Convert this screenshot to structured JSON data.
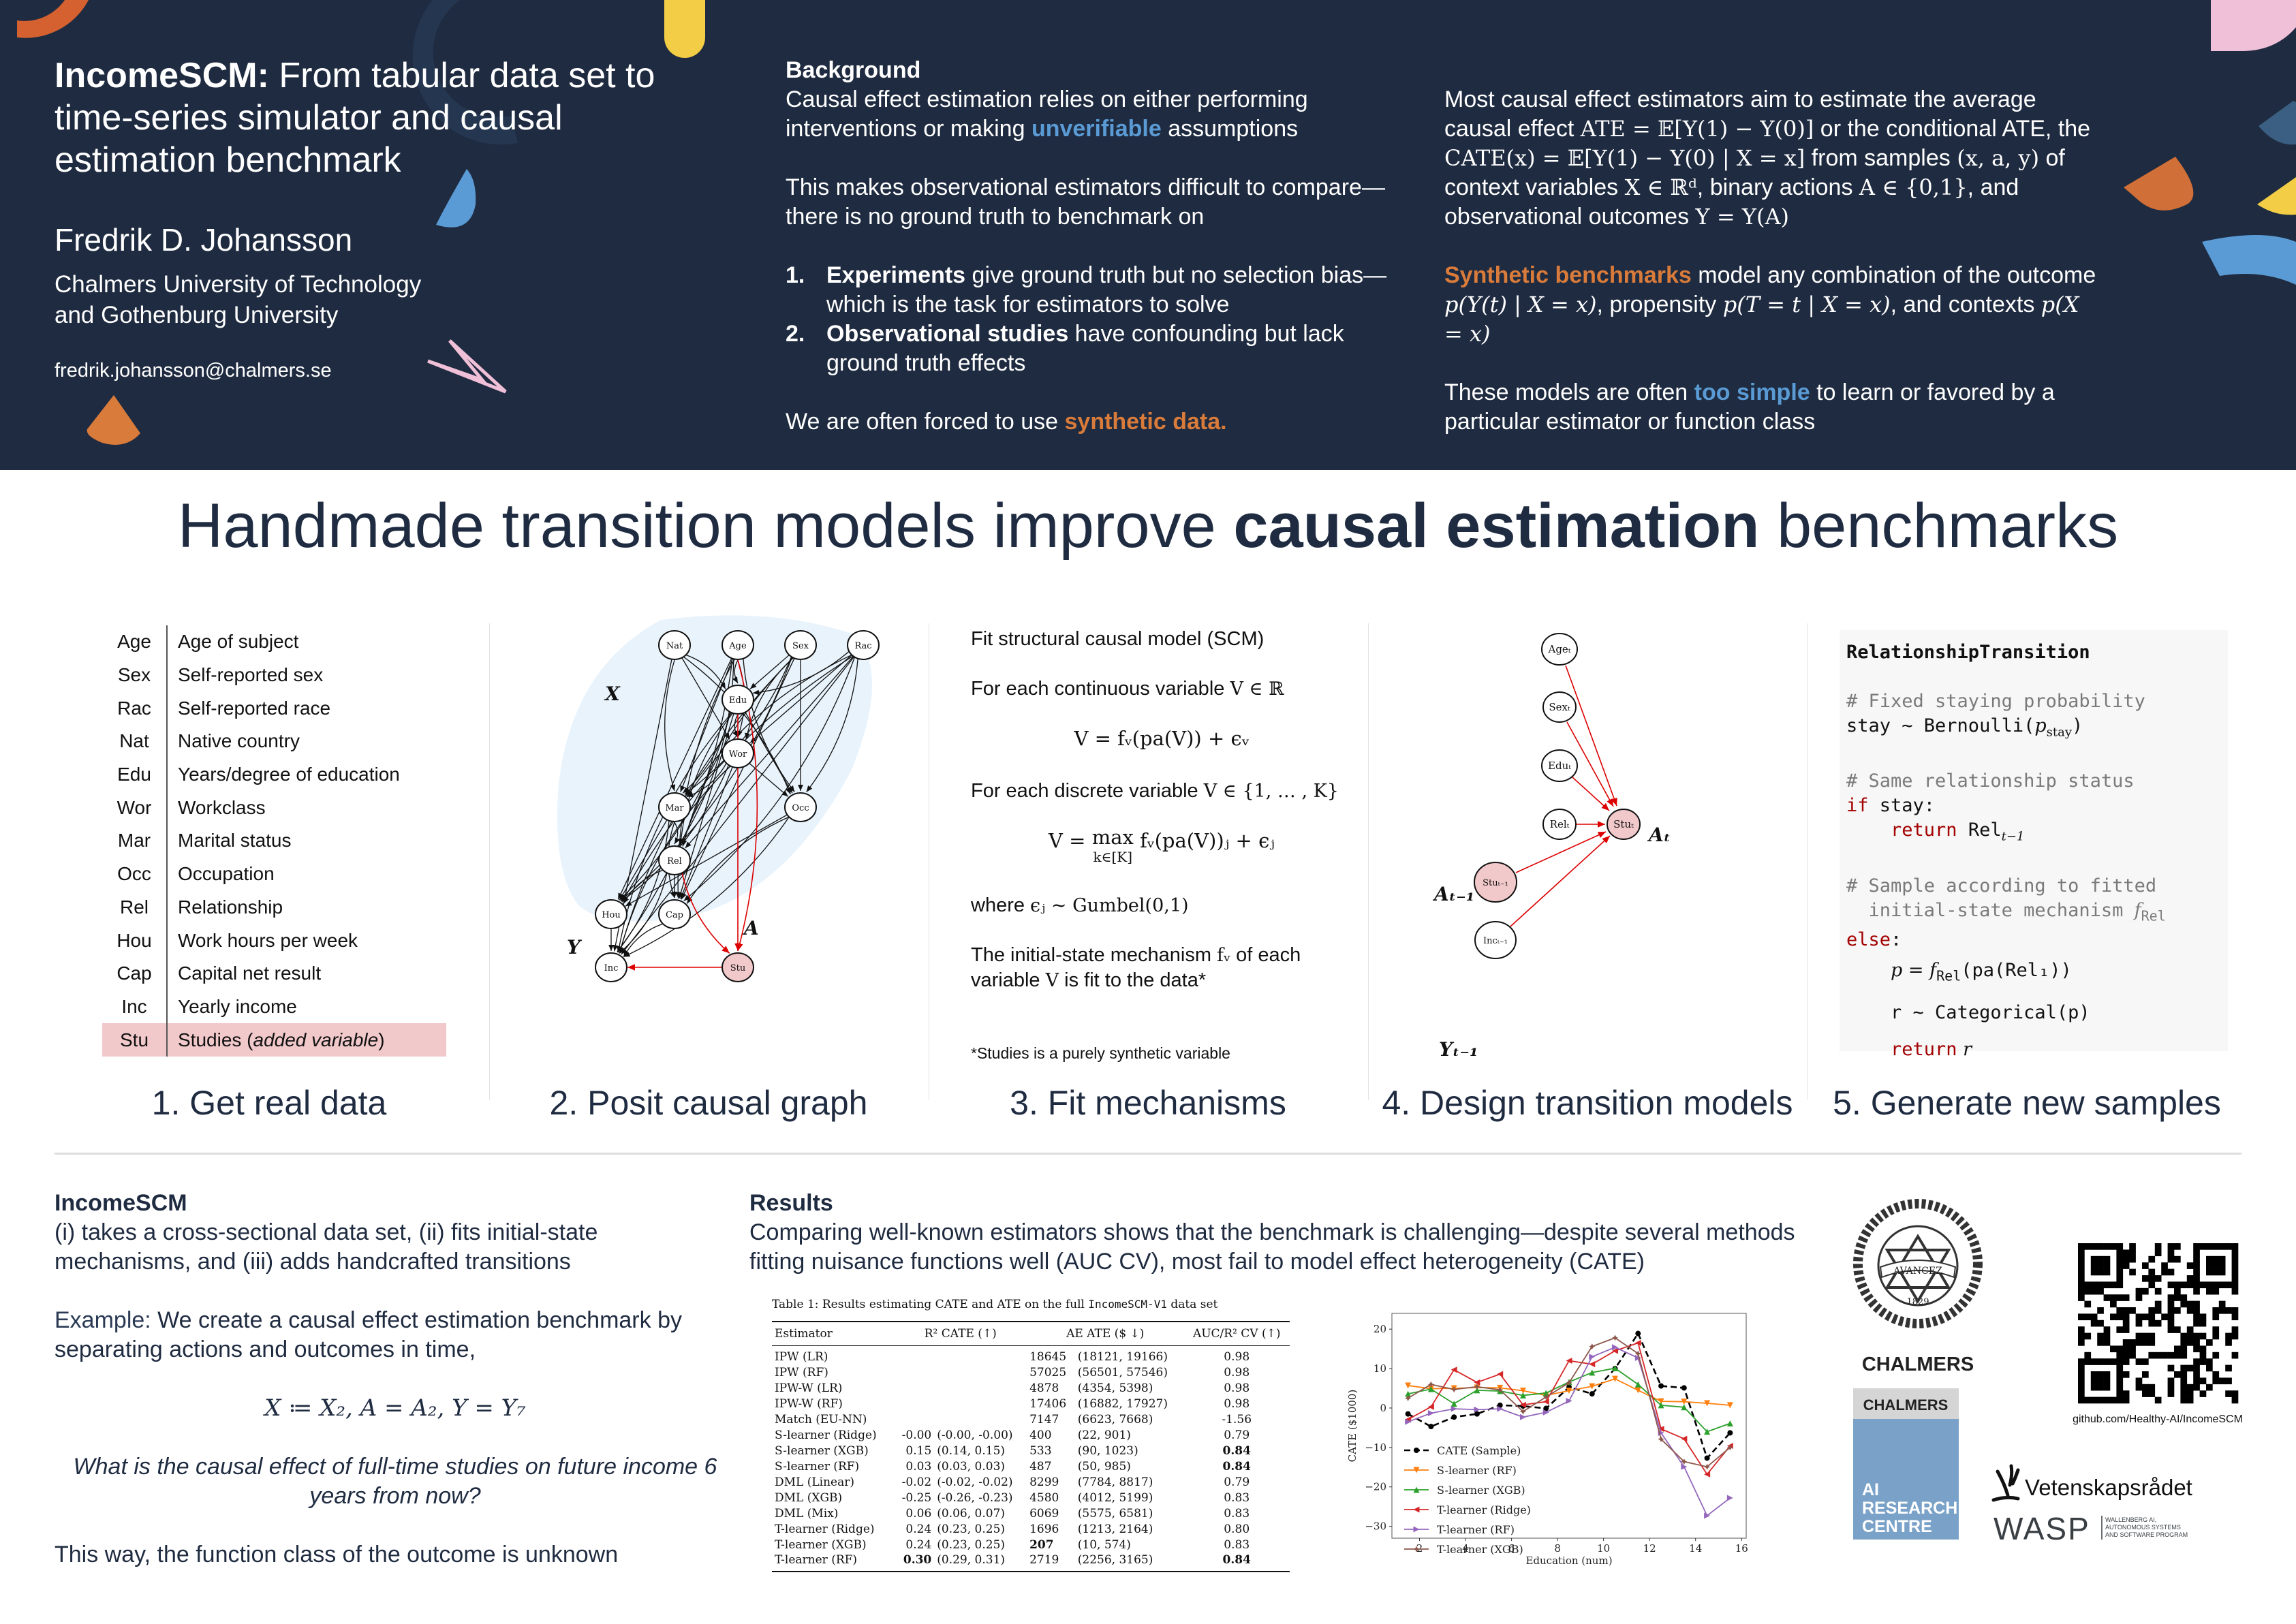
{
  "header": {
    "title_bold": "IncomeSCM:",
    "title_rest": " From tabular data set to time-series simulator and causal estimation benchmark",
    "author": "Fredrik D. Johansson",
    "affiliation_line1": "Chalmers University of Technology",
    "affiliation_line2": "and Gothenburg University",
    "email": "fredrik.johansson@chalmers.se",
    "colors": {
      "background": "#1f2b40",
      "orange": "#d97b3a",
      "blue": "#5a9bd5",
      "yellow": "#f2cd45",
      "pink": "#f0c0d8",
      "slate": "#3b5f82"
    }
  },
  "background": {
    "heading": "Background",
    "p1_a": "Causal effect estimation relies on either performing interventions or making ",
    "p1_highlight": "unverifiable",
    "p1_b": " assumptions",
    "p2": "This makes observational estimators difficult to compare—there is no ground truth to benchmark on",
    "list": [
      {
        "num": "1.",
        "bold": "Experiments",
        "rest": " give ground truth but no selection bias—which is the task for estimators to solve"
      },
      {
        "num": "2.",
        "bold": "Observational studies",
        "rest": " have confounding but lack ground truth effects"
      }
    ],
    "p3_a": "We are often forced to use ",
    "p3_highlight": "synthetic data."
  },
  "intro_right": {
    "p1_a": "Most causal effect estimators aim to estimate the average causal effect ",
    "p1_ate": "ATE = 𝔼[Y(1) − Y(0)]",
    "p1_b": " or the conditional ATE, the ",
    "p1_cate": "CATE(x) = 𝔼[Y(1) − Y(0) | X = x]",
    "p1_c": " from samples ",
    "p1_samples": "(x, a, y)",
    "p1_d": " of context variables ",
    "p1_X": "X ∈ ℝᵈ",
    "p1_e": ", binary actions ",
    "p1_A": "A ∈ {0,1}",
    "p1_f": ", and observational outcomes ",
    "p1_Y": "Y = Y(A)",
    "p2_highlight": "Synthetic benchmarks",
    "p2_a": " model any combination of the outcome ",
    "p2_outcome": "p(Y(t) | X = x)",
    "p2_b": ", propensity ",
    "p2_prop": "p(T = t | X = x)",
    "p2_c": ", and contexts ",
    "p2_ctx": "p(X = x)",
    "p3_a": "These models are often ",
    "p3_highlight": "too simple",
    "p3_b": " to learn or favored by a particular estimator or function class"
  },
  "main_title": {
    "normal": "Handmade transition models improve ",
    "bold": "causal estimation",
    "end": " benchmarks"
  },
  "steps": [
    {
      "label": "1. Get real data"
    },
    {
      "label": "2. Posit causal graph"
    },
    {
      "label": "3. Fit mechanisms"
    },
    {
      "label": "4. Design transition models"
    },
    {
      "label": "5. Generate new samples"
    }
  ],
  "variables": [
    {
      "abbr": "Age",
      "desc": "Age of subject"
    },
    {
      "abbr": "Sex",
      "desc": "Self-reported sex"
    },
    {
      "abbr": "Rac",
      "desc": "Self-reported race"
    },
    {
      "abbr": "Nat",
      "desc": "Native country"
    },
    {
      "abbr": "Edu",
      "desc": "Years/degree of education"
    },
    {
      "abbr": "Wor",
      "desc": "Workclass"
    },
    {
      "abbr": "Mar",
      "desc": "Marital status"
    },
    {
      "abbr": "Occ",
      "desc": "Occupation"
    },
    {
      "abbr": "Rel",
      "desc": "Relationship"
    },
    {
      "abbr": "Hou",
      "desc": "Work hours per week"
    },
    {
      "abbr": "Cap",
      "desc": "Capital net result"
    },
    {
      "abbr": "Inc",
      "desc": "Yearly income"
    },
    {
      "abbr": "Stu",
      "desc": "Studies (",
      "desc_italic": "added variable",
      "desc_end": ")",
      "highlight": true
    }
  ],
  "causal_graph": {
    "nodes": [
      "Nat",
      "Age",
      "Sex",
      "Rac",
      "Edu",
      "Wor",
      "Mar",
      "Occ",
      "Rel",
      "Hou",
      "Cap",
      "Inc",
      "Stu"
    ],
    "labels": {
      "X": "X",
      "A": "A",
      "Y": "Y"
    },
    "treatment_node": "Stu"
  },
  "mechanisms": {
    "l1": "Fit structural causal model (SCM)",
    "l2_a": "For each continuous variable ",
    "l2_m": "V ∈ ℝ",
    "eq1": "V = fᵥ(pa(V)) + ϵᵥ",
    "l3_a": "For each discrete variable ",
    "l3_m": "V ∈ {1, … , K}",
    "eq2_a": "V = ",
    "eq2_max": "max",
    "eq2_sub": "k∈[K]",
    "eq2_b": " fᵥ(pa(V))ⱼ + ϵⱼ",
    "l4_a": "where ",
    "l4_m": "ϵⱼ ~ Gumbel(0,1)",
    "l5_a": "The initial-state mechanism ",
    "l5_m1": "fᵥ",
    "l5_b": " of each variable ",
    "l5_m2": "V",
    "l5_c": " is fit to the data*",
    "footnote": "*Studies is a purely synthetic variable"
  },
  "transition_graph": {
    "nodes": [
      "Ageₜ",
      "Sexₜ",
      "Eduₜ",
      "Relₜ",
      "Stuₜ",
      "Stuₜ₋₁",
      "Incₜ₋₁"
    ],
    "labels": {
      "At": "Aₜ",
      "At1": "Aₜ₋₁",
      "Yt1": "Yₜ₋₁"
    }
  },
  "code": {
    "title": "RelationshipTransition",
    "c1": "# Fixed staying probability",
    "l1_a": "stay ~ Bernoulli(",
    "l1_m": "p",
    "l1_sub": "stay",
    "l1_b": ")",
    "c2": "# Same relationship status",
    "if_kw": "if",
    "if_rest": " stay:",
    "ret_kw": "return",
    "ret1": " Rel",
    "ret1_sub": "t−1",
    "c3a": "# Sample according to fitted",
    "c3b": "  initial-state mechanism ",
    "c3_f": "f",
    "c3_sub": "Rel",
    "else_kw": "else",
    "else_rest": ":",
    "l2_a": "p = f",
    "l2_sub": "Rel",
    "l2_b": "(pa(Rel₁))",
    "l3": "r ~ Categorical(p)",
    "ret2": " r"
  },
  "bottom_left": {
    "heading": "IncomeSCM",
    "p1": "(i) takes a cross-sectional data set, (ii) fits initial-state mechanisms, and (iii) adds handcrafted transitions",
    "p2_bold": "Example:",
    "p2_rest": " We create a causal effect estimation benchmark by separating actions and outcomes in time,",
    "equation": "X ≔ X₂, A = A₂, Y = Y₇",
    "question": "What is the causal effect of full-time studies on future income 6 years from now?",
    "p3": "This way, the function class of the outcome is unknown"
  },
  "results": {
    "heading": "Results",
    "text": "Comparing well-known estimators shows that the benchmark is challenging—despite several methods fitting nuisance functions well (AUC CV), most fail to model effect heterogeneity (CATE)",
    "table": {
      "caption_a": "Table 1: Results estimating CATE and ATE on the full ",
      "caption_code": "IncomeSCM-V1",
      "caption_b": " data set",
      "headers": [
        "Estimator",
        "R² CATE (↑)",
        "AE ATE ($ ↓)",
        "AUC/R² CV (↑)"
      ],
      "rows": [
        {
          "est": "IPW (LR)",
          "r2": "",
          "r2_ci": "",
          "ae": "18645",
          "ae_ci": "(18121, 19166)",
          "cv": "0.98"
        },
        {
          "est": "IPW (RF)",
          "r2": "",
          "r2_ci": "",
          "ae": "57025",
          "ae_ci": "(56501, 57546)",
          "cv": "0.98"
        },
        {
          "est": "IPW-W (LR)",
          "r2": "",
          "r2_ci": "",
          "ae": "4878",
          "ae_ci": "(4354, 5398)",
          "cv": "0.98"
        },
        {
          "est": "IPW-W (RF)",
          "r2": "",
          "r2_ci": "",
          "ae": "17406",
          "ae_ci": "(16882, 17927)",
          "cv": "0.98"
        },
        {
          "est": "Match (EU-NN)",
          "r2": "",
          "r2_ci": "",
          "ae": "7147",
          "ae_ci": "(6623, 7668)",
          "cv": "-1.56"
        },
        {
          "est": "S-learner (Ridge)",
          "r2": "-0.00",
          "r2_ci": "(-0.00, -0.00)",
          "ae": "400",
          "ae_ci": "(22, 901)",
          "cv": "0.79"
        },
        {
          "est": "S-learner (XGB)",
          "r2": "0.15",
          "r2_ci": "(0.14, 0.15)",
          "ae": "533",
          "ae_ci": "(90, 1023)",
          "cv": "0.84",
          "cv_bold": true
        },
        {
          "est": "S-learner (RF)",
          "r2": "0.03",
          "r2_ci": "(0.03, 0.03)",
          "ae": "487",
          "ae_ci": "(50, 985)",
          "cv": "0.84",
          "cv_bold": true
        },
        {
          "est": "DML (Linear)",
          "r2": "-0.02",
          "r2_ci": "(-0.02, -0.02)",
          "ae": "8299",
          "ae_ci": "(7784, 8817)",
          "cv": "0.79"
        },
        {
          "est": "DML (XGB)",
          "r2": "-0.25",
          "r2_ci": "(-0.26, -0.23)",
          "ae": "4580",
          "ae_ci": "(4012, 5199)",
          "cv": "0.83"
        },
        {
          "est": "DML (Mix)",
          "r2": "0.06",
          "r2_ci": "(0.06, 0.07)",
          "ae": "6069",
          "ae_ci": "(5575, 6581)",
          "cv": "0.83"
        },
        {
          "est": "T-learner (Ridge)",
          "r2": "0.24",
          "r2_ci": "(0.23, 0.25)",
          "ae": "1696",
          "ae_ci": "(1213, 2164)",
          "cv": "0.80"
        },
        {
          "est": "T-learner (XGB)",
          "r2": "0.24",
          "r2_ci": "(0.23, 0.25)",
          "ae": "207",
          "ae_bold": true,
          "ae_ci": "(10, 574)",
          "cv": "0.83"
        },
        {
          "est": "T-learner (RF)",
          "r2": "0.30",
          "r2_bold": true,
          "r2_ci": "(0.29, 0.31)",
          "ae": "2719",
          "ae_ci": "(2256, 3165)",
          "cv": "0.84",
          "cv_bold": true
        }
      ]
    }
  },
  "chart_data": {
    "type": "line",
    "title": "",
    "xlabel": "Education (num)",
    "ylabel": "CATE ($1000)",
    "xlim": [
      0.8,
      16.2
    ],
    "ylim": [
      -33,
      24
    ],
    "xticks": [
      2,
      4,
      6,
      8,
      10,
      12,
      14,
      16
    ],
    "yticks": [
      -30,
      -20,
      -10,
      0,
      10,
      20
    ],
    "grid": false,
    "legend_position": "lower-left",
    "x": [
      1.5,
      2.5,
      3.5,
      4.5,
      5.5,
      6.5,
      7.5,
      8.5,
      9.5,
      10.5,
      11.5,
      12.5,
      13.5,
      14.5,
      15.5
    ],
    "series": [
      {
        "name": "CATE (Sample)",
        "color": "#000000",
        "dashed": true,
        "marker": "circle",
        "values": [
          -1.5,
          -4.7,
          -2.3,
          -1.5,
          0.7,
          0.5,
          -0.1,
          5.3,
          3.6,
          10.0,
          18.9,
          5.6,
          5.1,
          -12.7,
          -6.3
        ]
      },
      {
        "name": "S-learner (RF)",
        "color": "#ff7f0e",
        "dashed": false,
        "marker": "triangle-down",
        "values": [
          5.7,
          4.9,
          5.0,
          5.2,
          5.1,
          4.4,
          3.2,
          4.4,
          5.5,
          7.4,
          4.5,
          1.7,
          1.6,
          1.2,
          0.7
        ]
      },
      {
        "name": "S-learner (XGB)",
        "color": "#2ca02c",
        "dashed": false,
        "marker": "triangle-up",
        "values": [
          3.6,
          4.8,
          1.1,
          4.5,
          4.3,
          3.2,
          3.8,
          6.6,
          9.0,
          10.1,
          6.0,
          0.7,
          0.2,
          -6.0,
          -3.9
        ]
      },
      {
        "name": "T-learner (Ridge)",
        "color": "#d62728",
        "dashed": false,
        "marker": "triangle-left",
        "values": [
          -2.9,
          0.3,
          9.7,
          6.5,
          8.6,
          0.8,
          1.6,
          12.0,
          11.1,
          14.5,
          16.5,
          -5.3,
          -7.8,
          -16.8,
          -9.6
        ]
      },
      {
        "name": "T-learner (RF)",
        "color": "#9467bd",
        "dashed": false,
        "marker": "triangle-right",
        "values": [
          -3.5,
          -1.3,
          -0.2,
          -0.4,
          -0.2,
          -2.3,
          -1.1,
          1.8,
          13.0,
          15.4,
          12.7,
          -6.3,
          -14.9,
          -27.3,
          -22.8
        ]
      },
      {
        "name": "T-learner (XGB)",
        "color": "#8c564b",
        "dashed": false,
        "marker": "star",
        "values": [
          2.5,
          6.0,
          4.7,
          5.4,
          4.6,
          -0.9,
          2.8,
          6.4,
          15.6,
          17.8,
          13.8,
          -7.9,
          -13.6,
          -14.9,
          -10.0
        ]
      }
    ]
  },
  "logos": {
    "chalmers_year": "1829",
    "chalmers_motto": "AVANCEZ",
    "chalmers_name": "CHALMERS",
    "ai_centre_top": "CHALMERS",
    "ai_centre_l1": "AI",
    "ai_centre_l2": "RESEARCH",
    "ai_centre_l3": "CENTRE",
    "github_url": "github.com/Healthy-AI/IncomeSCM",
    "vr_name": "Vetenskapsrådet",
    "wasp_name": "WASP",
    "wasp_l1": "WALLENBERG AI,",
    "wasp_l2": "AUTONOMOUS SYSTEMS",
    "wasp_l3": "AND SOFTWARE PROGRAM"
  }
}
